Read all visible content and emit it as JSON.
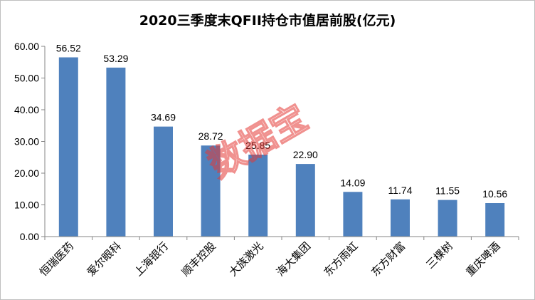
{
  "chart_data": {
    "type": "bar",
    "title": "2020三季度末QFII持仓市值居前股(亿元)",
    "categories": [
      "恒瑞医药",
      "爱尔眼科",
      "上海银行",
      "顺丰控股",
      "大族激光",
      "海大集团",
      "东方雨虹",
      "东方财富",
      "三棵树",
      "重庆啤酒"
    ],
    "values": [
      56.52,
      53.29,
      34.69,
      28.72,
      25.85,
      22.9,
      14.09,
      11.74,
      11.55,
      10.56
    ],
    "data_labels": [
      "56.52",
      "53.29",
      "34.69",
      "28.72",
      "25.85",
      "22.90",
      "14.09",
      "11.74",
      "11.55",
      "10.56"
    ],
    "ylim": [
      0,
      60
    ],
    "yticks": [
      "0.00",
      "10.00",
      "20.00",
      "30.00",
      "40.00",
      "50.00",
      "60.00"
    ],
    "ytick_values": [
      0,
      10,
      20,
      30,
      40,
      50,
      60
    ],
    "xlabel": "",
    "ylabel": "",
    "grid": false,
    "legend": "none",
    "bar_color": "#4f81bd",
    "axis_color": "#868686"
  },
  "watermark": {
    "text": "数据宝",
    "color": "#e53935"
  }
}
